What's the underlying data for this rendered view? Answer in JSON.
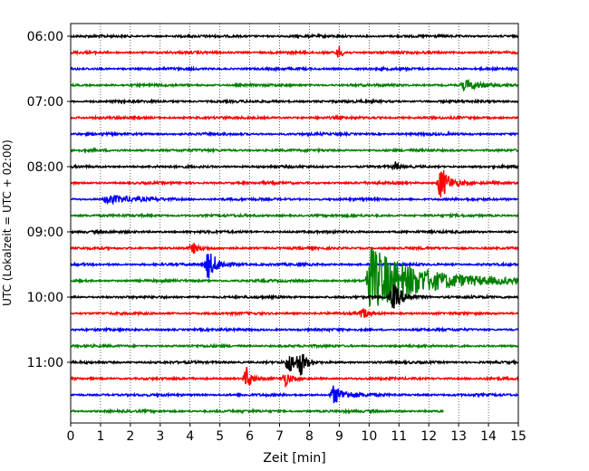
{
  "chart_data": {
    "type": "line",
    "title": "",
    "xlabel": "Zeit  [min]",
    "ylabel": "UTC (Lokalzeit = UTC + 02:00)",
    "xlim": [
      0,
      15
    ],
    "x_ticks": [
      "0",
      "1",
      "2",
      "3",
      "4",
      "5",
      "6",
      "7",
      "8",
      "9",
      "10",
      "11",
      "12",
      "13",
      "14",
      "15"
    ],
    "y_ticks": [
      {
        "label": "06:00",
        "row": 0
      },
      {
        "label": "07:00",
        "row": 4
      },
      {
        "label": "08:00",
        "row": 8
      },
      {
        "label": "09:00",
        "row": 12
      },
      {
        "label": "10:00",
        "row": 16
      },
      {
        "label": "11:00",
        "row": 20
      }
    ],
    "grid": "vertical dotted at each minute",
    "row_interval_min": 15,
    "colors": [
      "#000000",
      "#ff0000",
      "#0000ff",
      "#008000"
    ],
    "traces": [
      {
        "start": "06:00",
        "end_min": 15,
        "events": []
      },
      {
        "start": "06:15",
        "end_min": 15,
        "events": [
          {
            "t": 9.0,
            "amp": 0.7,
            "dur": 0.2
          }
        ]
      },
      {
        "start": "06:30",
        "end_min": 15,
        "events": []
      },
      {
        "start": "06:45",
        "end_min": 15,
        "events": [
          {
            "t": 13.2,
            "amp": 0.6,
            "dur": 0.8
          }
        ]
      },
      {
        "start": "07:00",
        "end_min": 15,
        "events": []
      },
      {
        "start": "07:15",
        "end_min": 15,
        "events": []
      },
      {
        "start": "07:30",
        "end_min": 15,
        "events": []
      },
      {
        "start": "07:45",
        "end_min": 15,
        "events": []
      },
      {
        "start": "08:00",
        "end_min": 15,
        "events": [
          {
            "t": 10.9,
            "amp": 0.5,
            "dur": 0.15
          }
        ]
      },
      {
        "start": "08:15",
        "end_min": 15,
        "events": [
          {
            "t": 12.4,
            "amp": 2.0,
            "dur": 0.5
          }
        ]
      },
      {
        "start": "08:30",
        "end_min": 15,
        "events": [
          {
            "t": 1.2,
            "amp": 0.5,
            "dur": 1.5
          }
        ]
      },
      {
        "start": "08:45",
        "end_min": 15,
        "events": []
      },
      {
        "start": "09:00",
        "end_min": 15,
        "events": []
      },
      {
        "start": "09:15",
        "end_min": 15,
        "events": [
          {
            "t": 4.1,
            "amp": 0.6,
            "dur": 0.3
          }
        ]
      },
      {
        "start": "09:30",
        "end_min": 15,
        "events": [
          {
            "t": 4.6,
            "amp": 1.6,
            "dur": 0.6
          }
        ]
      },
      {
        "start": "09:45",
        "end_min": 15,
        "events": [
          {
            "t": 10.0,
            "amp": 3.8,
            "dur": 3.0
          }
        ]
      },
      {
        "start": "10:00",
        "end_min": 15,
        "events": [
          {
            "t": 10.8,
            "amp": 1.5,
            "dur": 0.6
          }
        ]
      },
      {
        "start": "10:15",
        "end_min": 15,
        "events": [
          {
            "t": 9.8,
            "amp": 0.6,
            "dur": 0.3
          }
        ]
      },
      {
        "start": "10:30",
        "end_min": 15,
        "events": []
      },
      {
        "start": "10:45",
        "end_min": 15,
        "events": []
      },
      {
        "start": "11:00",
        "end_min": 15,
        "events": [
          {
            "t": 7.3,
            "amp": 1.2,
            "dur": 0.5
          },
          {
            "t": 7.7,
            "amp": 1.3,
            "dur": 0.3
          }
        ]
      },
      {
        "start": "11:15",
        "end_min": 15,
        "events": [
          {
            "t": 5.9,
            "amp": 1.3,
            "dur": 0.3
          },
          {
            "t": 7.2,
            "amp": 0.8,
            "dur": 0.3
          }
        ]
      },
      {
        "start": "11:30",
        "end_min": 15,
        "events": [
          {
            "t": 8.8,
            "amp": 1.0,
            "dur": 0.8
          }
        ]
      },
      {
        "start": "11:45",
        "end_min": 12.5,
        "events": []
      }
    ]
  }
}
